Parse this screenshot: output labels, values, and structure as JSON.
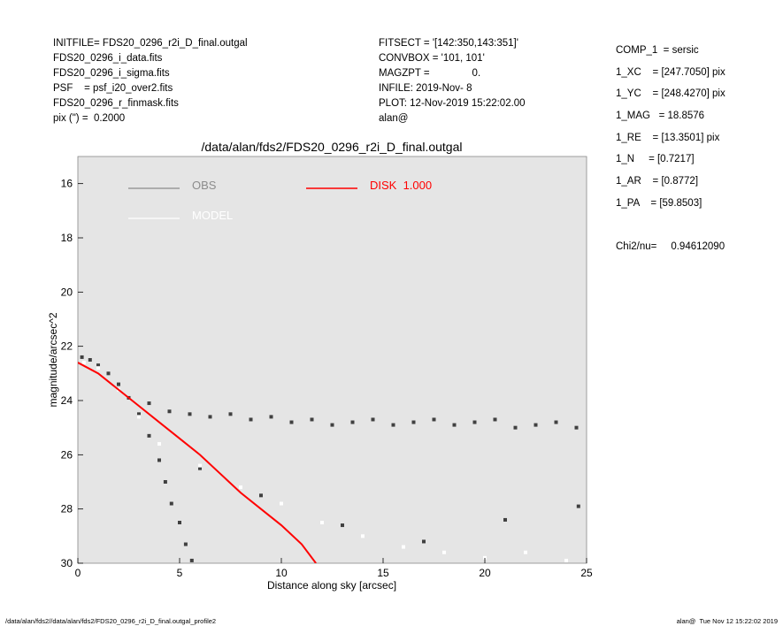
{
  "header": {
    "left": [
      "INITFILE= FDS20_0296_r2i_D_final.outgal",
      "FDS20_0296_i_data.fits",
      "FDS20_0296_i_sigma.fits",
      "PSF    = psf_i20_over2.fits",
      "FDS20_0296_r_finmask.fits",
      "pix (\") =  0.2000"
    ],
    "middle": [
      "FITSECT = '[142:350,143:351]'",
      "CONVBOX = '101, 101'",
      "MAGZPT =               0.",
      "INFILE: 2019-Nov- 8",
      "PLOT: 12-Nov-2019 15:22:02.00",
      "alan@"
    ],
    "right": [
      "COMP_1  = sersic",
      "1_XC    = [247.7050] pix",
      "1_YC    = [248.4270] pix",
      "1_MAG   = 18.8576",
      "1_RE    = [13.3501] pix",
      "1_N     = [0.7217]",
      "1_AR    = [0.8772]",
      "1_PA    = [59.8503]",
      "",
      "Chi2/nu=     0.94612090"
    ]
  },
  "footer": {
    "left": "/data/alan/fds2//data/alan/fds2/FDS20_0296_r2i_D_final.outgal_profile2",
    "right": "alan@  Tue Nov 12 15:22:02 2019"
  },
  "chart_data": {
    "type": "scatter",
    "title": "/data/alan/fds2/FDS20_0296_r2i_D_final.outgal",
    "x_label": "Distance along sky [arcsec]",
    "y_label": "magnitude/arcsec^2",
    "xlim": [
      0,
      25
    ],
    "xticks": [
      0,
      5,
      10,
      15,
      20,
      25
    ],
    "ylim": [
      30,
      15
    ],
    "yticks": [
      16,
      18,
      20,
      22,
      24,
      26,
      28,
      30
    ],
    "background": "#e5e5e5",
    "series": [
      {
        "name": "OBS",
        "color": "#8c8c8c",
        "point_color": "#404040",
        "x": [
          0.2,
          0.6,
          1,
          1.5,
          2,
          2.5,
          3,
          3.5,
          4,
          4.3,
          4.6,
          5,
          5.3,
          5.6,
          3.5,
          4.5,
          5.5,
          6.5,
          7.5,
          8.5,
          9.5,
          10.5,
          11.5,
          12.5,
          13.5,
          14.5,
          15.5,
          16.5,
          17.5,
          18.5,
          19.5,
          20.5,
          21.5,
          22.5,
          23.5,
          24.5,
          6,
          9,
          13,
          17,
          21,
          24.6
        ],
        "values": [
          22.4,
          22.5,
          22.7,
          23.0,
          23.4,
          23.9,
          24.5,
          25.3,
          26.2,
          27.0,
          27.8,
          28.5,
          29.3,
          29.9,
          24.1,
          24.4,
          24.5,
          24.6,
          24.5,
          24.7,
          24.6,
          24.8,
          24.7,
          24.9,
          24.8,
          24.7,
          24.9,
          24.8,
          24.7,
          24.9,
          24.8,
          24.7,
          25.0,
          24.9,
          24.8,
          25.0,
          26.5,
          27.5,
          28.6,
          29.2,
          28.4,
          27.9
        ]
      },
      {
        "name": "MODEL",
        "color": "#ffffff",
        "point_color": "#ffffff",
        "x": [
          0.3,
          1,
          2,
          3,
          4,
          6,
          8,
          10,
          12,
          14,
          16,
          18,
          20,
          22,
          24
        ],
        "values": [
          22.6,
          22.8,
          23.6,
          24.6,
          25.6,
          26.4,
          27.2,
          27.8,
          28.5,
          29.0,
          29.4,
          29.6,
          29.8,
          29.6,
          29.9
        ]
      },
      {
        "name": "DISK  1.000",
        "color": "#ff0000",
        "type": "line",
        "x": [
          0,
          1,
          2,
          3,
          4,
          5,
          6,
          7,
          8,
          9,
          10,
          11,
          11.7
        ],
        "values": [
          22.6,
          23.0,
          23.6,
          24.2,
          24.8,
          25.4,
          26.0,
          26.7,
          27.4,
          28.0,
          28.6,
          29.3,
          30
        ]
      }
    ]
  }
}
